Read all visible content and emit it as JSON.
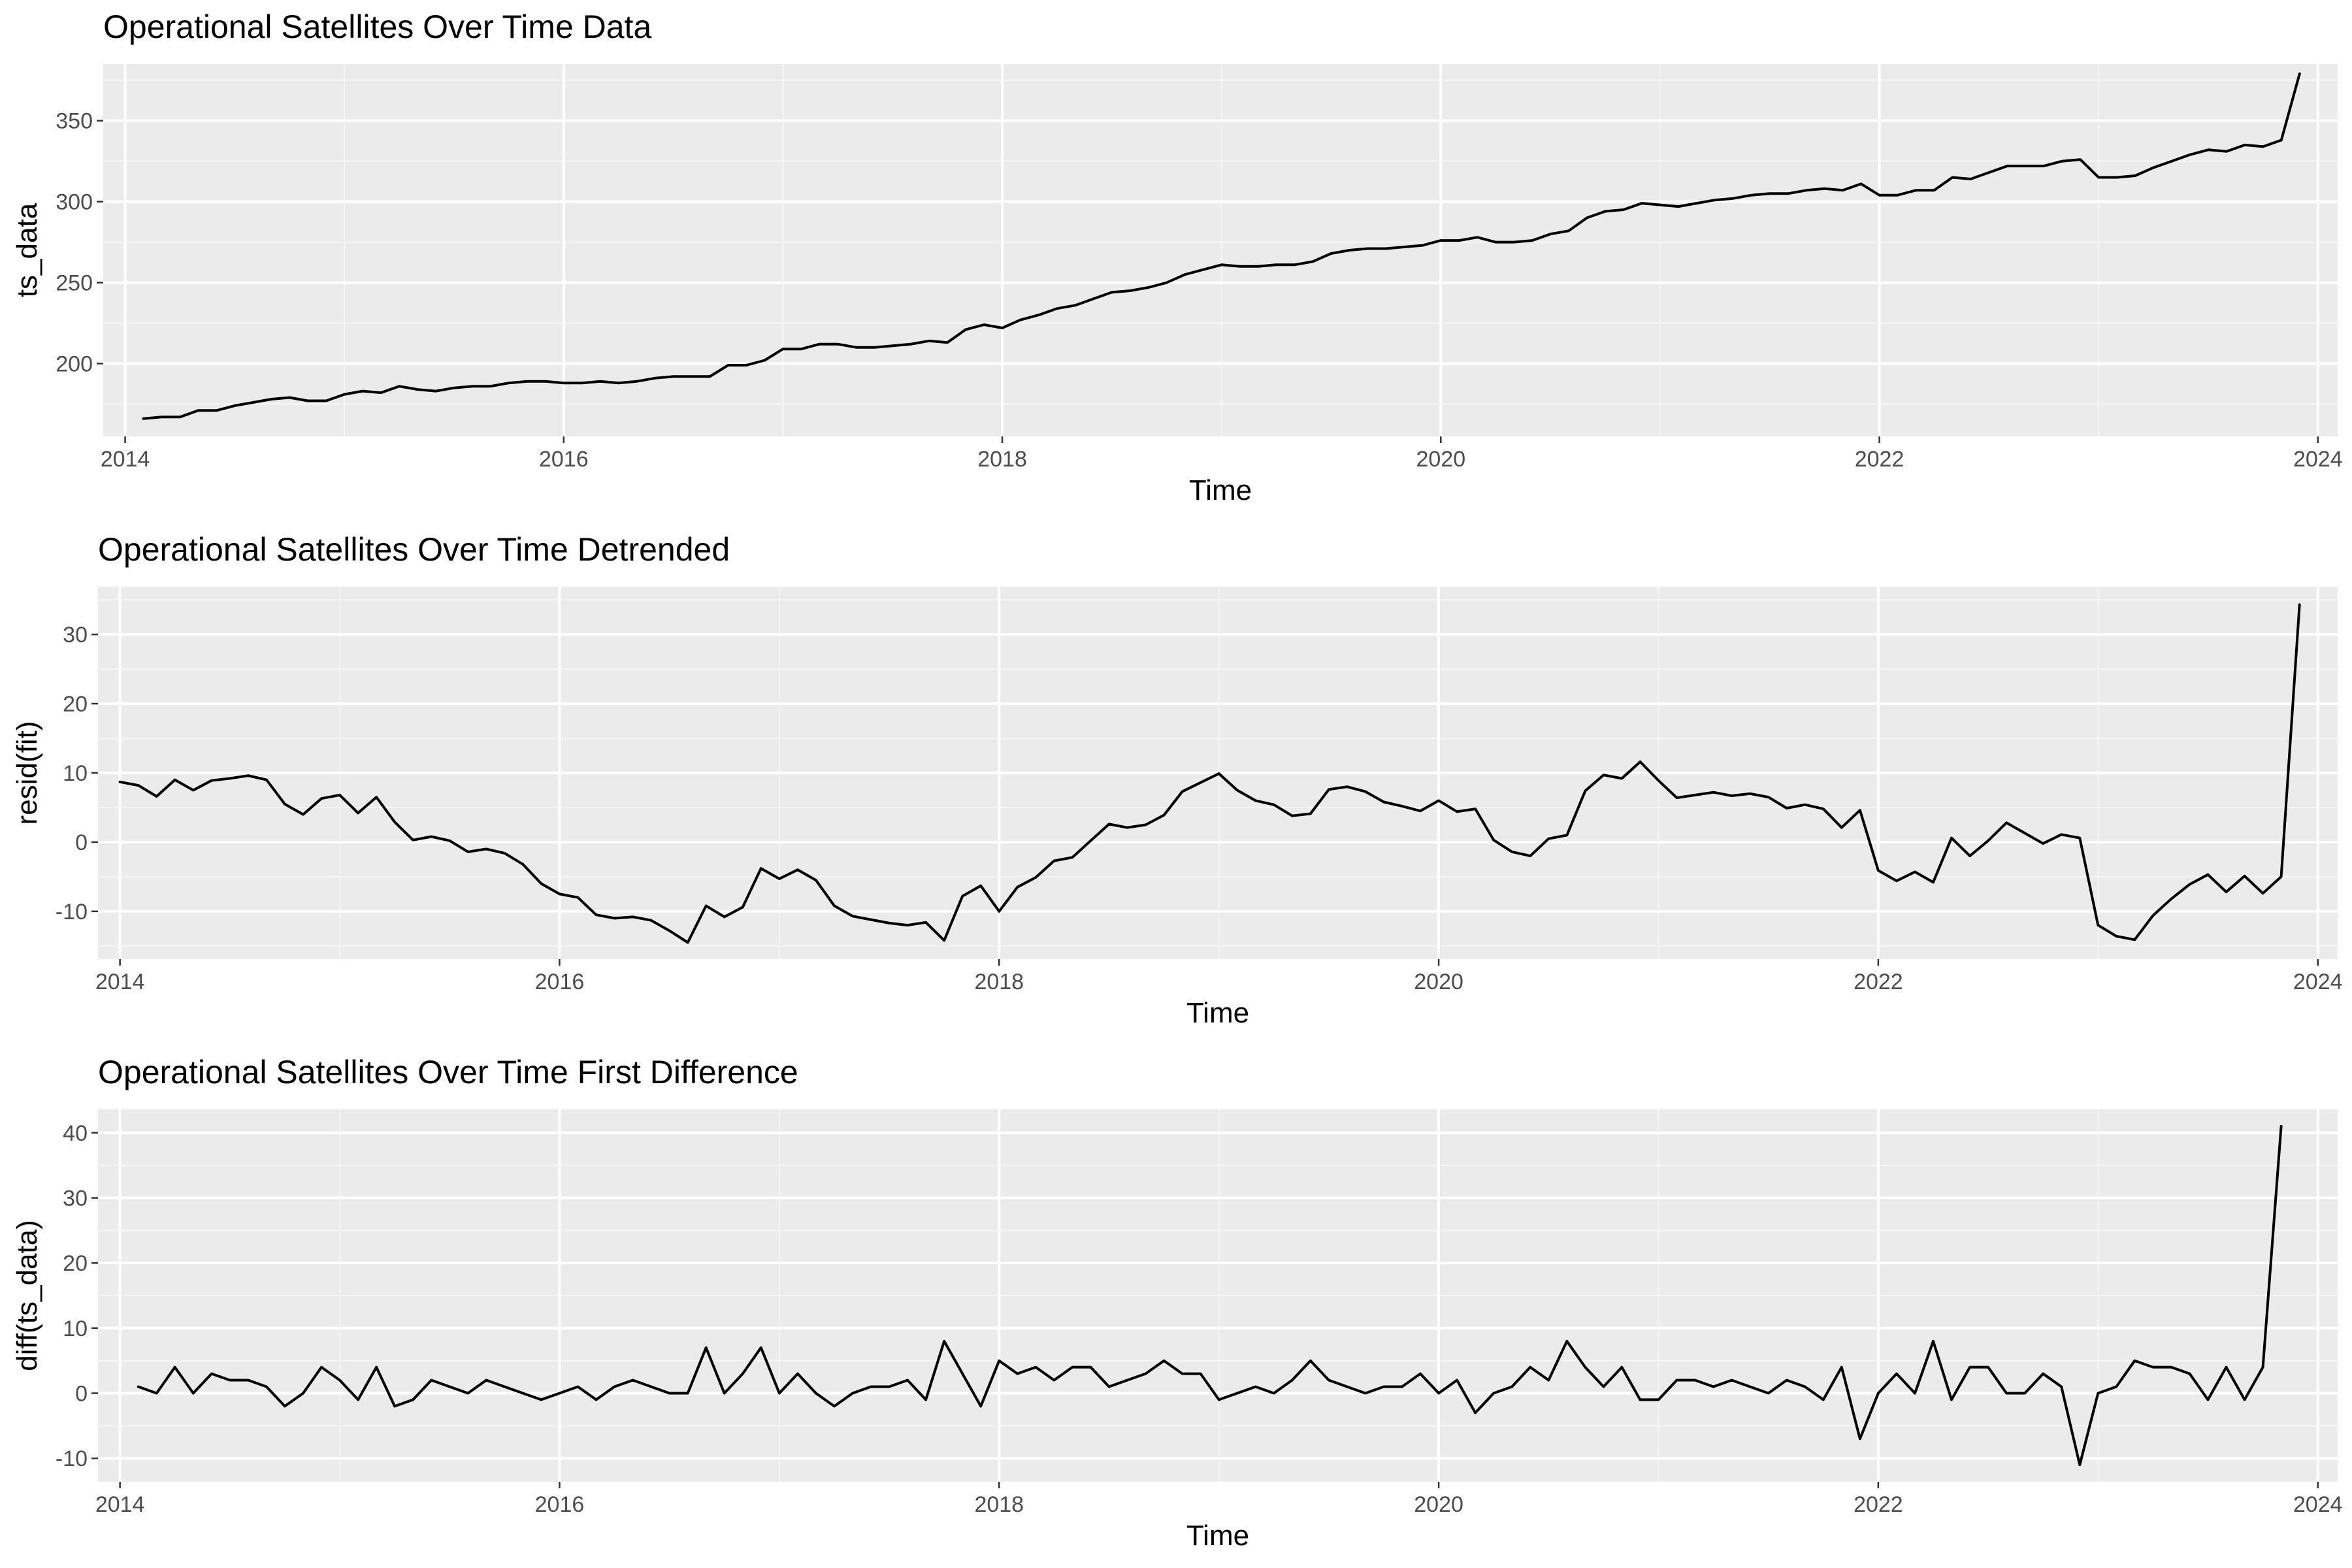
{
  "colors": {
    "panel_bg": "#EBEBEB",
    "grid_major": "#FFFFFF",
    "grid_minor": "#F5F5F5",
    "line": "#000000",
    "text": "#000000",
    "tick_text": "#4D4D4D"
  },
  "chart_data": [
    {
      "type": "line",
      "title": "Operational Satellites Over Time Data",
      "xlabel": "Time",
      "ylabel": "ts_data",
      "xlim": [
        2013.9,
        2024.09
      ],
      "ylim": [
        155,
        385
      ],
      "xticks": [
        2014,
        2016,
        2018,
        2020,
        2022,
        2024
      ],
      "xtick_labels": [
        "2014",
        "2016",
        "2018",
        "2020",
        "2022",
        "2024"
      ],
      "yticks": [
        200,
        250,
        300,
        350
      ],
      "ytick_labels": [
        "200",
        "250",
        "300",
        "350"
      ],
      "grid": true,
      "x_start": 2014.0833,
      "x_step": 0.083333,
      "values": [
        166,
        167,
        167,
        171,
        171,
        174,
        176,
        178,
        179,
        177,
        177,
        181,
        183,
        182,
        186,
        184,
        183,
        185,
        186,
        186,
        188,
        189,
        189,
        188,
        188,
        189,
        188,
        189,
        191,
        192,
        192,
        192,
        199,
        199,
        202,
        209,
        209,
        212,
        212,
        210,
        210,
        211,
        212,
        214,
        213,
        221,
        224,
        222,
        227,
        230,
        234,
        236,
        240,
        244,
        245,
        247,
        250,
        255,
        258,
        261,
        260,
        260,
        261,
        261,
        263,
        268,
        270,
        271,
        271,
        272,
        273,
        276,
        276,
        278,
        275,
        275,
        276,
        280,
        282,
        290,
        294,
        295,
        299,
        298,
        297,
        299,
        301,
        302,
        304,
        305,
        305,
        307,
        308,
        307,
        311,
        304,
        304,
        307,
        307,
        315,
        314,
        318,
        322,
        322,
        322,
        325,
        326,
        315,
        315,
        316,
        321,
        325,
        329,
        332,
        331,
        335,
        334,
        338,
        379
      ]
    },
    {
      "type": "line",
      "title": "Operational Satellites Over Time Detrended",
      "xlabel": "Time",
      "ylabel": "resid(fit)",
      "xlim": [
        2013.9,
        2024.09
      ],
      "ylim": [
        -16.9,
        36.9
      ],
      "xticks": [
        2014,
        2016,
        2018,
        2020,
        2022,
        2024
      ],
      "xtick_labels": [
        "2014",
        "2016",
        "2018",
        "2020",
        "2022",
        "2024"
      ],
      "yticks": [
        -10,
        0,
        10,
        20,
        30
      ],
      "ytick_labels": [
        "-10",
        "0",
        "10",
        "20",
        "30"
      ],
      "grid": true,
      "x_start": 2014.0,
      "x_step": 0.083333,
      "values": [
        8.7,
        8.2,
        6.6,
        9.0,
        7.5,
        8.9,
        9.2,
        9.6,
        9.0,
        5.5,
        4.0,
        6.3,
        6.8,
        4.2,
        6.5,
        2.9,
        0.3,
        0.8,
        0.2,
        -1.4,
        -1.0,
        -1.6,
        -3.2,
        -6.0,
        -7.5,
        -8.0,
        -10.5,
        -11.0,
        -10.8,
        -11.3,
        -12.8,
        -14.5,
        -9.2,
        -10.8,
        -9.4,
        -3.8,
        -5.3,
        -4.0,
        -5.5,
        -9.2,
        -10.7,
        -11.2,
        -11.7,
        -12.0,
        -11.6,
        -14.2,
        -7.8,
        -6.3,
        -10.0,
        -6.5,
        -5.1,
        -2.7,
        -2.2,
        0.2,
        2.6,
        2.1,
        2.5,
        3.9,
        7.3,
        8.6,
        9.9,
        7.5,
        6.0,
        5.4,
        3.8,
        4.1,
        7.6,
        8.0,
        7.3,
        5.8,
        5.2,
        4.5,
        6.0,
        4.4,
        4.8,
        0.3,
        -1.4,
        -2.0,
        0.5,
        1.0,
        7.4,
        9.7,
        9.2,
        11.6,
        8.9,
        6.4,
        6.8,
        7.2,
        6.7,
        7.0,
        6.5,
        4.9,
        5.4,
        4.8,
        2.1,
        4.6,
        -4.1,
        -5.6,
        -4.3,
        -5.8,
        0.6,
        -2.0,
        0.2,
        2.8,
        1.3,
        -0.2,
        1.1,
        0.6,
        -12.0,
        -13.6,
        -14.1,
        -10.6,
        -8.2,
        -6.1,
        -4.7,
        -7.2,
        -4.9,
        -7.4,
        -5.0,
        34.3
      ]
    },
    {
      "type": "line",
      "title": "Operational Satellites Over Time First Difference",
      "xlabel": "Time",
      "ylabel": "diff(ts_data)",
      "xlim": [
        2013.9,
        2024.09
      ],
      "ylim": [
        -13.6,
        43.6
      ],
      "xticks": [
        2014,
        2016,
        2018,
        2020,
        2022,
        2024
      ],
      "xtick_labels": [
        "2014",
        "2016",
        "2018",
        "2020",
        "2022",
        "2024"
      ],
      "yticks": [
        -10,
        0,
        10,
        20,
        30,
        40
      ],
      "ytick_labels": [
        "-10",
        "0",
        "10",
        "20",
        "30",
        "40"
      ],
      "grid": true,
      "x_start": 2014.0833,
      "x_step": 0.083333,
      "values": [
        1,
        0,
        4,
        0,
        3,
        2,
        2,
        1,
        -2,
        0,
        4,
        2,
        -1,
        4,
        -2,
        -1,
        2,
        1,
        0,
        2,
        1,
        0,
        -1,
        0,
        1,
        -1,
        1,
        2,
        1,
        0,
        0,
        7,
        0,
        3,
        7,
        0,
        3,
        0,
        -2,
        0,
        1,
        1,
        2,
        -1,
        8,
        3,
        -2,
        5,
        3,
        4,
        2,
        4,
        4,
        1,
        2,
        3,
        5,
        3,
        3,
        -1,
        0,
        1,
        0,
        2,
        5,
        2,
        1,
        0,
        1,
        1,
        3,
        0,
        2,
        -3,
        0,
        1,
        4,
        2,
        8,
        4,
        1,
        4,
        -1,
        -1,
        2,
        2,
        1,
        2,
        1,
        0,
        2,
        1,
        -1,
        4,
        -7,
        0,
        3,
        0,
        8,
        -1,
        4,
        4,
        0,
        0,
        3,
        1,
        -11,
        0,
        1,
        5,
        4,
        4,
        3,
        -1,
        4,
        -1,
        4,
        41
      ]
    }
  ]
}
